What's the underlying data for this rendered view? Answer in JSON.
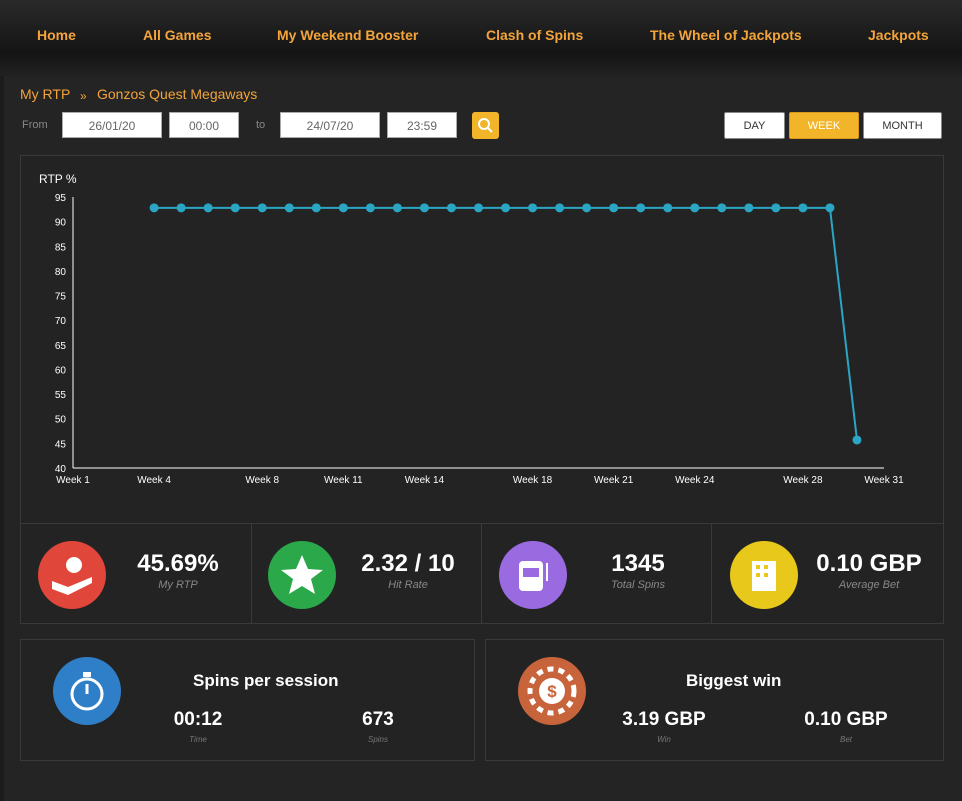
{
  "nav": [
    "Home",
    "All Games",
    "My Weekend Booster",
    "Clash of Spins",
    "The Wheel of Jackpots",
    "Jackpots"
  ],
  "breadcrumb": [
    "My RTP",
    "Gonzos Quest Megaways"
  ],
  "breadcrumb_separator": "»",
  "filters": {
    "from_label": "From",
    "from_date": "26/01/20",
    "from_time": "00:00",
    "to_label": "to",
    "to_date": "24/07/20",
    "to_time": "23:59"
  },
  "periods": [
    "DAY",
    "WEEK",
    "MONTH"
  ],
  "active_period": "WEEK",
  "chart_data": {
    "type": "line",
    "y_label": "RTP %",
    "categories": [
      "Week 1",
      null,
      null,
      "Week 4",
      null,
      null,
      null,
      "Week 8",
      null,
      null,
      "Week 11",
      null,
      null,
      "Week 14",
      null,
      null,
      null,
      "Week 18",
      null,
      null,
      "Week 21",
      null,
      null,
      "Week 24",
      null,
      null,
      null,
      "Week 28",
      null,
      null,
      "Week 31"
    ],
    "series": [
      {
        "color": "#2aa6c4",
        "values": [
          null,
          null,
          null,
          92.8,
          92.8,
          92.8,
          92.8,
          92.8,
          92.8,
          92.8,
          92.8,
          92.8,
          92.8,
          92.8,
          92.8,
          92.8,
          92.8,
          92.8,
          92.8,
          92.8,
          92.8,
          92.8,
          92.8,
          92.8,
          92.8,
          92.8,
          92.8,
          92.8,
          92.8,
          45.69,
          null
        ]
      }
    ],
    "ylim": [
      40,
      95
    ],
    "yticks": [
      40,
      45,
      50,
      55,
      60,
      65,
      70,
      75,
      80,
      85,
      90,
      95
    ]
  },
  "stats": [
    {
      "value": "45.69%",
      "label": "My RTP"
    },
    {
      "value": "2.32 / 10",
      "label": "Hit Rate"
    },
    {
      "value": "1345",
      "label": "Total Spins"
    },
    {
      "value": "0.10 GBP",
      "label": "Average Bet"
    }
  ],
  "sessions": {
    "title": "Spins per session",
    "items": [
      {
        "value": "00:12",
        "label": "Time"
      },
      {
        "value": "673",
        "label": "Spins"
      }
    ]
  },
  "biggest_win": {
    "title": "Biggest win",
    "items": [
      {
        "value": "3.19 GBP",
        "label": "Win"
      },
      {
        "value": "0.10 GBP",
        "label": "Bet"
      }
    ]
  }
}
